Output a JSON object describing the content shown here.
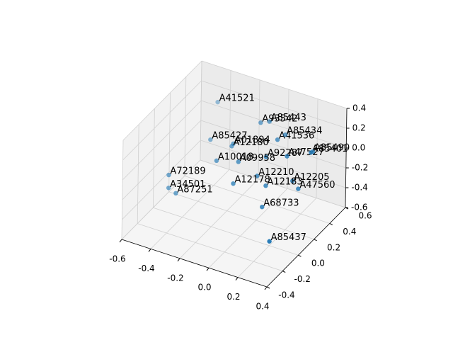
{
  "chart_data": {
    "type": "scatter3d",
    "color": "#1f77b4",
    "grid": true,
    "labels": [
      "A41521",
      "A93542",
      "A85443",
      "A41536",
      "A85434",
      "A85427",
      "A01894",
      "A12180",
      "A92287",
      "A47527",
      "A85401",
      "A85490",
      "A10018",
      "A09958",
      "A72189",
      "A12210",
      "A12205",
      "A12183",
      "A12178",
      "A47560",
      "A34501",
      "A87251",
      "A68733",
      "A85437"
    ],
    "x": [
      -0.38,
      -0.03,
      0.03,
      0.14,
      0.14,
      -0.32,
      -0.11,
      -0.12,
      0.17,
      0.26,
      0.37,
      0.33,
      -0.17,
      -0.02,
      -0.39,
      0.11,
      0.3,
      0.17,
      0.0,
      0.34,
      -0.39,
      -0.34,
      0.2,
      0.36
    ],
    "y": [
      0.4,
      0.3,
      0.3,
      0.2,
      0.3,
      0.2,
      0.1,
      0.1,
      0.0,
      0.1,
      0.2,
      0.3,
      0.0,
      0.0,
      -0.2,
      0.0,
      0.1,
      0.0,
      -0.1,
      0.1,
      -0.2,
      -0.2,
      -0.1,
      -0.3
    ],
    "z": [
      0.25,
      0.29,
      0.33,
      0.28,
      0.25,
      0.06,
      0.2,
      0.17,
      0.28,
      0.25,
      0.26,
      0.17,
      0.08,
      0.14,
      -0.01,
      0.06,
      0.02,
      -0.01,
      0.01,
      -0.04,
      -0.14,
      -0.17,
      -0.13,
      -0.24
    ],
    "xlim": [
      -0.6,
      0.4
    ],
    "ylim": [
      -0.4,
      0.6
    ],
    "zlim": [
      -0.6,
      0.4
    ],
    "xticks": [
      -0.6,
      -0.4,
      -0.2,
      {
        "value": 0,
        "label": "0.0"
      },
      0.2,
      0.4
    ],
    "yticks": [
      -0.4,
      -0.2,
      {
        "value": 0,
        "label": "0.0"
      },
      0.2,
      0.4,
      0.6
    ],
    "zticks": [
      -0.6,
      -0.4,
      -0.2,
      {
        "value": 0,
        "label": "0.0"
      },
      0.2,
      0.4
    ]
  }
}
